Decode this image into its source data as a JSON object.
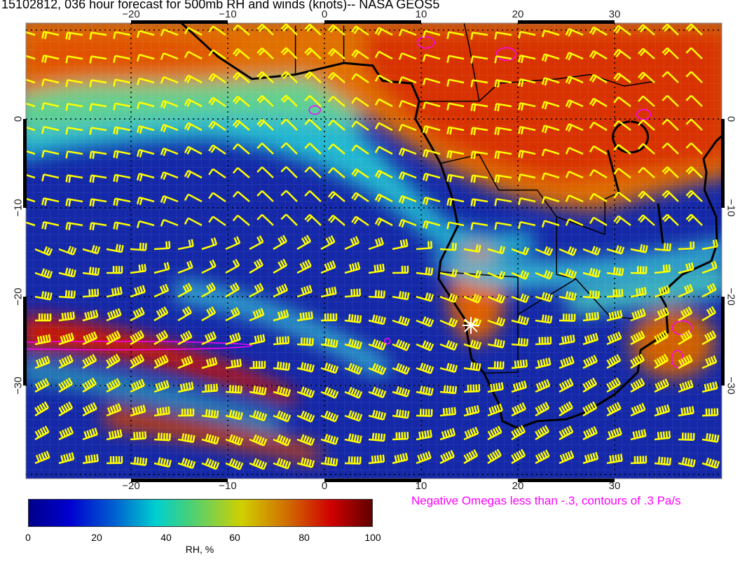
{
  "title": "15102812, 036 hour forecast for 500mb RH and winds (knots)-- NASA GEOS5",
  "map": {
    "lon_range": [
      -31,
      41
    ],
    "lat_range": [
      -41,
      10.5
    ],
    "lon_ticks": [
      "−20",
      "−10",
      "0",
      "10",
      "20",
      "30"
    ],
    "lat_ticks": [
      "0",
      "−10",
      "−20",
      "−30"
    ],
    "barb_color": "#ffff00",
    "omega_contour_color": "#ff00ff",
    "coastline_color": "#000000"
  },
  "colorbar": {
    "ticks": [
      "0",
      "20",
      "40",
      "60",
      "80",
      "100"
    ],
    "label": "RH, %",
    "range": [
      0,
      100
    ]
  },
  "omega_note": "Negative Omegas less than -.3, contours of .3 Pa/s"
}
